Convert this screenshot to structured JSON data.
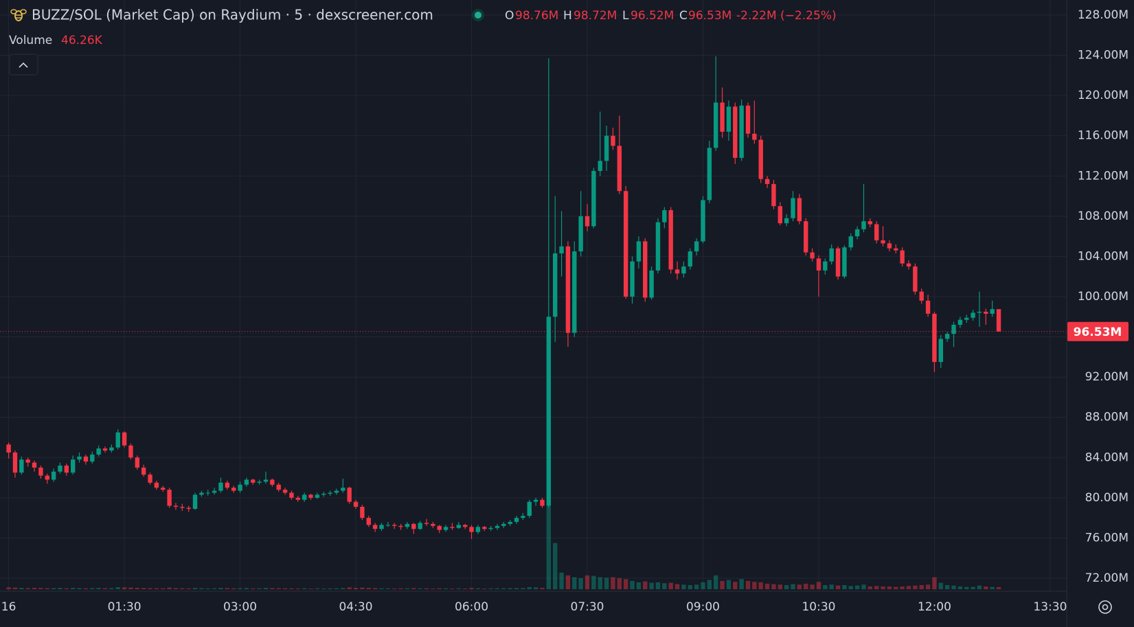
{
  "chart_data": {
    "type": "candlestick",
    "title": "BUZZ/SOL (Market Cap) on Raydium · 5 · dexscreener.com",
    "legend": {
      "open_key": "O",
      "open": "98.76M",
      "high_key": "H",
      "high": "98.72M",
      "low_key": "L",
      "low": "96.52M",
      "close_key": "C",
      "close": "96.53M",
      "change": "-2.22M (−2.25%)",
      "volume_title": "Volume",
      "volume_value": "46.26K"
    },
    "up_color": "#089981",
    "down_color": "#f23645",
    "grid": true,
    "ylim": [
      70.7,
      129.5
    ],
    "yticks": [
      {
        "value": 72,
        "label": "72.00M"
      },
      {
        "value": 76,
        "label": "76.00M"
      },
      {
        "value": 80,
        "label": "80.00M"
      },
      {
        "value": 84,
        "label": "84.00M"
      },
      {
        "value": 88,
        "label": "88.00M"
      },
      {
        "value": 92,
        "label": "92.00M"
      },
      {
        "value": 96,
        "label": "96.00M"
      },
      {
        "value": 100,
        "label": "100.00M"
      },
      {
        "value": 104,
        "label": "104.00M"
      },
      {
        "value": 108,
        "label": "108.00M"
      },
      {
        "value": 112,
        "label": "112.00M"
      },
      {
        "value": 116,
        "label": "116.00M"
      },
      {
        "value": 120,
        "label": "120.00M"
      },
      {
        "value": 124,
        "label": "124.00M"
      },
      {
        "value": 128,
        "label": "128.00M"
      }
    ],
    "last_price": {
      "value": 96.53,
      "label": "96.53M"
    },
    "categories": [
      "16",
      null,
      null,
      null,
      null,
      null,
      null,
      null,
      null,
      null,
      null,
      null,
      null,
      null,
      null,
      null,
      null,
      null,
      "01:30",
      null,
      null,
      null,
      null,
      null,
      null,
      null,
      null,
      null,
      null,
      null,
      null,
      null,
      null,
      null,
      null,
      null,
      "03:00",
      null,
      null,
      null,
      null,
      null,
      null,
      null,
      null,
      null,
      null,
      null,
      null,
      null,
      null,
      null,
      null,
      null,
      "04:30",
      null,
      null,
      null,
      null,
      null,
      null,
      null,
      null,
      null,
      null,
      null,
      null,
      null,
      null,
      null,
      null,
      null,
      "06:00",
      null,
      null,
      null,
      null,
      null,
      null,
      null,
      null,
      null,
      null,
      null,
      null,
      null,
      null,
      null,
      null,
      null,
      "07:30",
      null,
      null,
      null,
      null,
      null,
      null,
      null,
      null,
      null,
      null,
      null,
      null,
      null,
      null,
      null,
      null,
      null,
      "09:00",
      null,
      null,
      null,
      null,
      null,
      null,
      null,
      null,
      null,
      null,
      null,
      null,
      null,
      null,
      null,
      null,
      null,
      "10:30",
      null,
      null,
      null,
      null,
      null,
      null,
      null,
      null,
      null,
      null,
      null,
      null,
      null,
      null,
      null,
      null,
      null,
      "12:00",
      null,
      null,
      null,
      null,
      null,
      null,
      null,
      null,
      null,
      null,
      null,
      null,
      null,
      null,
      null,
      null,
      null,
      "13:30"
    ],
    "ohlc": [
      [
        85.3,
        85.5,
        83.9,
        84.5
      ],
      [
        84.5,
        84.7,
        82.0,
        82.5
      ],
      [
        82.5,
        84.1,
        82.3,
        83.8
      ],
      [
        83.8,
        84.0,
        83.1,
        83.5
      ],
      [
        83.5,
        83.7,
        82.6,
        83.0
      ],
      [
        83.0,
        83.2,
        81.9,
        82.2
      ],
      [
        82.2,
        82.4,
        81.4,
        81.8
      ],
      [
        81.8,
        82.9,
        81.6,
        82.6
      ],
      [
        82.6,
        83.5,
        82.4,
        83.2
      ],
      [
        83.2,
        83.4,
        82.2,
        82.5
      ],
      [
        82.5,
        84.2,
        82.3,
        83.8
      ],
      [
        83.8,
        84.5,
        83.5,
        84.1
      ],
      [
        84.1,
        84.3,
        83.3,
        83.6
      ],
      [
        83.6,
        84.6,
        83.4,
        84.3
      ],
      [
        84.3,
        85.2,
        84.1,
        84.9
      ],
      [
        84.9,
        85.1,
        84.5,
        84.7
      ],
      [
        84.7,
        85.3,
        84.5,
        85.0
      ],
      [
        85.0,
        86.8,
        84.8,
        86.5
      ],
      [
        86.5,
        86.6,
        85.0,
        85.2
      ],
      [
        85.2,
        85.4,
        83.8,
        84.0
      ],
      [
        84.0,
        84.2,
        82.8,
        83.0
      ],
      [
        83.0,
        83.3,
        82.1,
        82.3
      ],
      [
        82.3,
        82.5,
        81.3,
        81.5
      ],
      [
        81.5,
        81.7,
        80.8,
        81.0
      ],
      [
        81.0,
        81.2,
        80.6,
        80.8
      ],
      [
        80.8,
        81.0,
        79.0,
        79.2
      ],
      [
        79.2,
        79.5,
        78.8,
        79.1
      ],
      [
        79.1,
        79.4,
        78.7,
        79.0
      ],
      [
        79.0,
        79.2,
        78.6,
        78.9
      ],
      [
        78.9,
        80.5,
        78.8,
        80.3
      ],
      [
        80.3,
        80.7,
        80.1,
        80.5
      ],
      [
        80.5,
        80.8,
        80.2,
        80.5
      ],
      [
        80.5,
        81.0,
        80.3,
        80.7
      ],
      [
        80.7,
        82.0,
        80.5,
        81.5
      ],
      [
        81.5,
        81.7,
        80.8,
        81.0
      ],
      [
        81.0,
        81.2,
        80.5,
        80.7
      ],
      [
        80.7,
        81.6,
        80.5,
        81.3
      ],
      [
        81.3,
        82.0,
        81.1,
        81.8
      ],
      [
        81.8,
        81.9,
        81.3,
        81.5
      ],
      [
        81.5,
        81.8,
        81.3,
        81.6
      ],
      [
        81.6,
        82.6,
        81.4,
        81.8
      ],
      [
        81.8,
        81.9,
        81.1,
        81.3
      ],
      [
        81.3,
        81.5,
        80.6,
        80.8
      ],
      [
        80.8,
        81.0,
        80.3,
        80.5
      ],
      [
        80.5,
        80.7,
        79.8,
        80.0
      ],
      [
        80.0,
        80.2,
        79.6,
        79.8
      ],
      [
        79.8,
        80.5,
        79.6,
        80.3
      ],
      [
        80.3,
        80.4,
        79.8,
        80.0
      ],
      [
        80.0,
        80.5,
        79.9,
        80.3
      ],
      [
        80.3,
        80.6,
        80.1,
        80.4
      ],
      [
        80.4,
        80.7,
        80.2,
        80.5
      ],
      [
        80.5,
        80.9,
        80.3,
        80.7
      ],
      [
        80.7,
        81.9,
        80.5,
        81.0
      ],
      [
        81.0,
        81.1,
        79.4,
        79.6
      ],
      [
        79.6,
        79.8,
        78.9,
        79.1
      ],
      [
        79.1,
        79.3,
        77.8,
        78.0
      ],
      [
        78.0,
        78.2,
        77.1,
        77.3
      ],
      [
        77.3,
        77.5,
        76.6,
        76.9
      ],
      [
        76.9,
        77.5,
        76.7,
        77.3
      ],
      [
        77.3,
        77.6,
        77.1,
        77.3
      ],
      [
        77.3,
        77.5,
        76.9,
        77.2
      ],
      [
        77.2,
        77.4,
        76.8,
        77.1
      ],
      [
        77.1,
        77.6,
        76.9,
        77.4
      ],
      [
        77.4,
        77.5,
        76.4,
        76.9
      ],
      [
        76.9,
        77.7,
        76.8,
        77.5
      ],
      [
        77.5,
        77.9,
        77.2,
        77.4
      ],
      [
        77.4,
        77.6,
        77.0,
        77.2
      ],
      [
        77.2,
        77.3,
        76.5,
        76.8
      ],
      [
        76.8,
        77.3,
        76.6,
        77.1
      ],
      [
        77.1,
        77.5,
        76.8,
        77.0
      ],
      [
        77.0,
        77.6,
        76.9,
        77.3
      ],
      [
        77.3,
        77.4,
        76.9,
        77.1
      ],
      [
        77.1,
        77.3,
        75.9,
        76.6
      ],
      [
        76.6,
        77.3,
        76.4,
        77.1
      ],
      [
        77.1,
        77.2,
        76.7,
        76.9
      ],
      [
        76.9,
        77.2,
        76.7,
        77.0
      ],
      [
        77.0,
        77.4,
        76.8,
        77.2
      ],
      [
        77.2,
        77.6,
        77.0,
        77.4
      ],
      [
        77.4,
        77.8,
        77.2,
        77.6
      ],
      [
        77.6,
        78.2,
        77.4,
        78.0
      ],
      [
        78.0,
        78.5,
        77.8,
        78.2
      ],
      [
        78.2,
        79.8,
        78.0,
        79.6
      ],
      [
        79.6,
        80.0,
        79.2,
        79.8
      ],
      [
        79.8,
        80.0,
        79.0,
        79.2
      ],
      [
        79.2,
        123.7,
        79.0,
        98.0
      ],
      [
        98.0,
        110.0,
        95.5,
        104.3
      ],
      [
        104.3,
        108.5,
        102.0,
        105.0
      ],
      [
        105.0,
        105.5,
        95.0,
        96.4
      ],
      [
        96.4,
        105.5,
        96.0,
        104.5
      ],
      [
        104.5,
        110.5,
        104.0,
        108.0
      ],
      [
        108.0,
        109.2,
        106.5,
        107.0
      ],
      [
        107.0,
        112.8,
        106.8,
        112.5
      ],
      [
        112.5,
        118.4,
        112.0,
        113.5
      ],
      [
        113.5,
        117.0,
        112.5,
        116.0
      ],
      [
        116.0,
        116.8,
        114.6,
        115.0
      ],
      [
        115.0,
        118.0,
        110.2,
        110.5
      ],
      [
        110.5,
        111.0,
        99.8,
        100.0
      ],
      [
        100.0,
        104.0,
        99.3,
        103.5
      ],
      [
        103.5,
        106.0,
        102.8,
        105.5
      ],
      [
        105.5,
        105.8,
        99.5,
        99.9
      ],
      [
        99.9,
        103.0,
        99.7,
        102.6
      ],
      [
        102.6,
        107.8,
        102.3,
        107.4
      ],
      [
        107.4,
        108.9,
        106.8,
        108.6
      ],
      [
        108.6,
        108.9,
        102.3,
        102.7
      ],
      [
        102.7,
        103.5,
        101.7,
        102.3
      ],
      [
        102.3,
        103.5,
        101.9,
        103.0
      ],
      [
        103.0,
        104.8,
        102.7,
        104.5
      ],
      [
        104.5,
        105.8,
        104.1,
        105.5
      ],
      [
        105.5,
        110.0,
        105.3,
        109.6
      ],
      [
        109.6,
        115.5,
        109.3,
        114.8
      ],
      [
        114.8,
        123.9,
        114.5,
        119.3
      ],
      [
        119.3,
        120.8,
        115.8,
        116.4
      ],
      [
        116.4,
        119.5,
        115.5,
        118.9
      ],
      [
        118.9,
        119.3,
        113.2,
        113.8
      ],
      [
        113.8,
        119.6,
        113.5,
        119.0
      ],
      [
        119.0,
        119.3,
        115.8,
        116.2
      ],
      [
        116.2,
        119.5,
        115.2,
        115.6
      ],
      [
        115.6,
        116.0,
        111.3,
        111.7
      ],
      [
        111.7,
        112.0,
        110.8,
        111.2
      ],
      [
        111.2,
        111.6,
        108.7,
        109.0
      ],
      [
        109.0,
        109.4,
        107.1,
        107.3
      ],
      [
        107.3,
        108.2,
        107.0,
        107.8
      ],
      [
        107.8,
        110.5,
        107.5,
        109.8
      ],
      [
        109.8,
        110.2,
        107.2,
        107.5
      ],
      [
        107.5,
        107.8,
        104.1,
        104.4
      ],
      [
        104.4,
        104.8,
        103.5,
        103.8
      ],
      [
        103.8,
        104.1,
        100.0,
        102.6
      ],
      [
        102.6,
        103.8,
        102.2,
        103.5
      ],
      [
        103.5,
        105.2,
        103.2,
        104.8
      ],
      [
        104.8,
        105.0,
        101.7,
        102.0
      ],
      [
        102.0,
        105.1,
        101.8,
        104.9
      ],
      [
        104.9,
        106.3,
        104.6,
        106.0
      ],
      [
        106.0,
        107.0,
        105.7,
        106.7
      ],
      [
        106.7,
        111.2,
        106.4,
        107.5
      ],
      [
        107.5,
        107.8,
        106.9,
        107.2
      ],
      [
        107.2,
        107.5,
        105.3,
        105.6
      ],
      [
        105.6,
        107.0,
        105.0,
        105.3
      ],
      [
        105.3,
        105.6,
        104.5,
        104.8
      ],
      [
        104.8,
        105.2,
        104.3,
        104.6
      ],
      [
        104.6,
        104.9,
        103.0,
        103.3
      ],
      [
        103.3,
        103.6,
        102.7,
        103.0
      ],
      [
        103.0,
        103.3,
        100.2,
        100.5
      ],
      [
        100.5,
        100.8,
        99.3,
        99.6
      ],
      [
        99.6,
        100.2,
        98.0,
        98.3
      ],
      [
        98.3,
        98.5,
        92.5,
        93.5
      ],
      [
        93.5,
        96.2,
        92.9,
        95.8
      ],
      [
        95.8,
        96.5,
        95.5,
        96.3
      ],
      [
        96.3,
        97.5,
        95.0,
        97.2
      ],
      [
        97.2,
        98.0,
        96.9,
        97.7
      ],
      [
        97.7,
        98.2,
        97.4,
        97.9
      ],
      [
        97.9,
        98.7,
        97.6,
        98.4
      ],
      [
        98.4,
        100.5,
        97.0,
        98.5
      ],
      [
        98.5,
        98.8,
        97.2,
        98.3
      ],
      [
        98.3,
        99.6,
        98.0,
        98.76
      ],
      [
        98.76,
        98.72,
        96.52,
        96.53
      ],
      null,
      null,
      null,
      null,
      null,
      null,
      null,
      null
    ],
    "volume": [
      40,
      35,
      30,
      25,
      30,
      28,
      22,
      25,
      30,
      20,
      30,
      25,
      20,
      25,
      30,
      22,
      25,
      45,
      40,
      35,
      30,
      28,
      25,
      22,
      20,
      35,
      25,
      20,
      18,
      30,
      22,
      18,
      20,
      30,
      25,
      20,
      22,
      28,
      18,
      20,
      30,
      25,
      22,
      20,
      18,
      15,
      20,
      15,
      18,
      16,
      18,
      20,
      25,
      40,
      30,
      35,
      30,
      25,
      20,
      18,
      15,
      18,
      20,
      25,
      18,
      20,
      15,
      20,
      18,
      15,
      18,
      15,
      30,
      20,
      15,
      18,
      20,
      22,
      25,
      28,
      25,
      45,
      40,
      30,
      1800,
      1000,
      360,
      300,
      260,
      240,
      300,
      290,
      260,
      250,
      260,
      240,
      220,
      180,
      150,
      170,
      140,
      150,
      130,
      140,
      110,
      100,
      90,
      100,
      150,
      200,
      300,
      180,
      200,
      160,
      220,
      180,
      160,
      150,
      120,
      110,
      100,
      90,
      110,
      100,
      120,
      100,
      160,
      90,
      100,
      80,
      90,
      70,
      80,
      100,
      60,
      70,
      60,
      60,
      50,
      60,
      70,
      80,
      90,
      100,
      260,
      140,
      90,
      80,
      60,
      50,
      50,
      80,
      60,
      50,
      46.26,
      null,
      null,
      null,
      null,
      null,
      null,
      null,
      null
    ]
  }
}
